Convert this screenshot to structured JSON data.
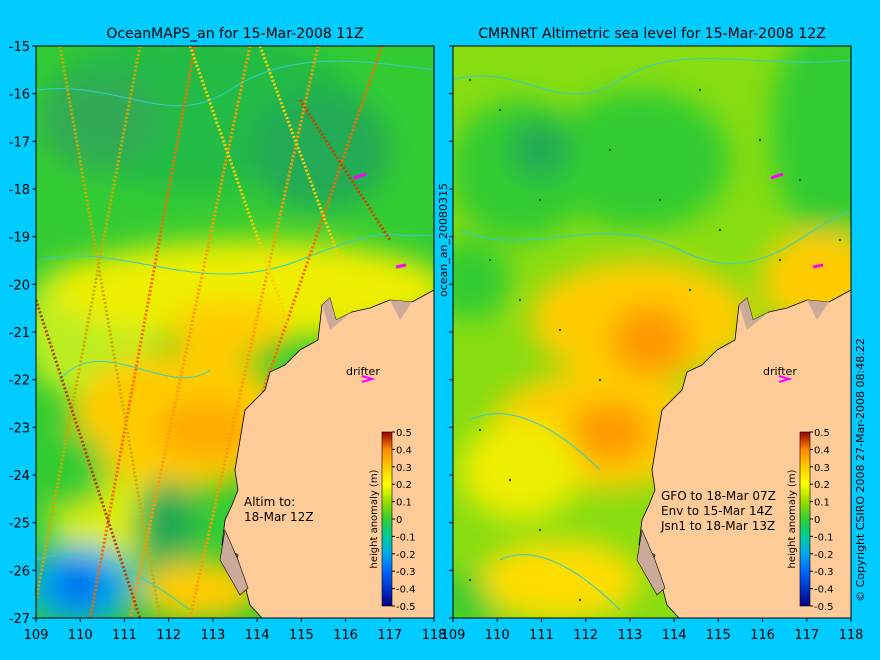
{
  "colors": {
    "background": "#00ccff",
    "land": "#ffcc99",
    "coast_line": "#000000",
    "contour_line": "#33cccc",
    "drifter": "#ff00ff"
  },
  "left_panel": {
    "title": "OceanMAPS_an for 15-Mar-2008 11Z",
    "annotation_line1": "Altim to:",
    "annotation_line2": "18-Mar 12Z",
    "drifter_label": "drifter",
    "side_label": "ocean_an_20080315"
  },
  "right_panel": {
    "title": "CMRNRT Altimetric sea level  for 15-Mar-2008 12Z",
    "drifter_label": "drifter",
    "legend_lines": [
      "GFO to 18-Mar 07Z",
      "Env to 15-Mar 14Z",
      "Jsn1 to 18-Mar 13Z"
    ],
    "copyright": "© Copyright CSIRO 2008   27-Mar-2008 08:48:22"
  },
  "axes": {
    "x_ticks": [
      "109",
      "110",
      "111",
      "112",
      "113",
      "114",
      "115",
      "116",
      "117",
      "118"
    ],
    "y_ticks": [
      "-15",
      "-16",
      "-17",
      "-18",
      "-19",
      "-20",
      "-21",
      "-22",
      "-23",
      "-24",
      "-25",
      "-26",
      "-27"
    ],
    "lon_range": [
      109,
      118
    ],
    "lat_range": [
      -27,
      -15
    ]
  },
  "colorbar": {
    "label": "height anomaly (m)",
    "ticks": [
      "0.5",
      "0.4",
      "0.3",
      "0.2",
      "0.1",
      "0",
      "-0.1",
      "-0.2",
      "-0.3",
      "-0.4",
      "-0.5"
    ],
    "range": [
      -0.5,
      0.5
    ],
    "colors": [
      "#000080",
      "#0033cc",
      "#0066ff",
      "#00aaee",
      "#00dd99",
      "#33cc33",
      "#99dd00",
      "#ffff00",
      "#ffcc00",
      "#ff9900",
      "#ee6600",
      "#cc3300",
      "#990000"
    ]
  }
}
